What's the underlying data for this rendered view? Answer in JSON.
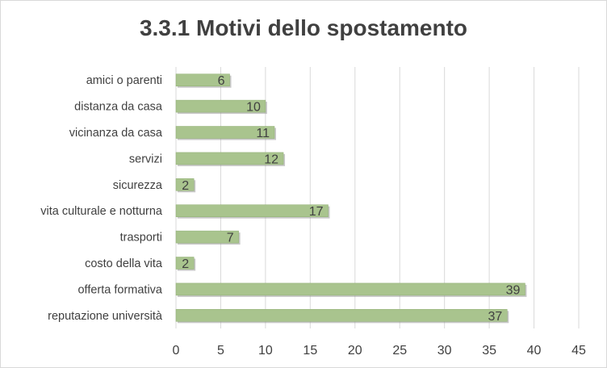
{
  "chart_data": {
    "type": "bar",
    "orientation": "horizontal",
    "title": "3.3.1 Motivi dello spostamento",
    "categories": [
      "amici o parenti",
      "distanza da casa",
      "vicinanza da casa",
      "servizi",
      "sicurezza",
      "vita culturale e notturna",
      "trasporti",
      "costo della vita",
      "offerta formativa",
      "reputazione università"
    ],
    "values": [
      6,
      10,
      11,
      12,
      2,
      17,
      7,
      2,
      39,
      37
    ],
    "xlim": [
      0,
      45
    ],
    "xticks": [
      0,
      5,
      10,
      15,
      20,
      25,
      30,
      35,
      40,
      45
    ],
    "grid": "vertical",
    "legend": "none",
    "data_labels": true,
    "colors": {
      "bar": "#a9c48e",
      "bar_edge": "#8fae72",
      "shadow": "#9a9a9a",
      "grid": "#d9d9d9",
      "text": "#404040"
    }
  }
}
